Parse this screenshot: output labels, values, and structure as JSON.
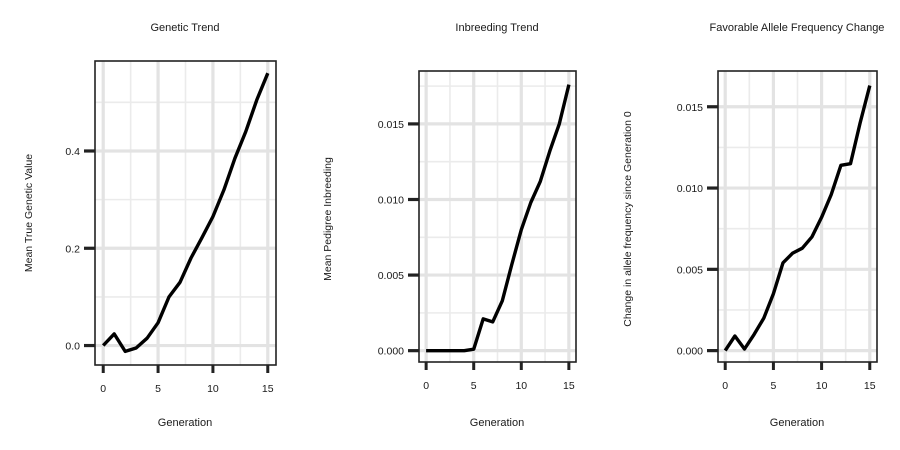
{
  "chart_data": [
    {
      "type": "line",
      "title": "Genetic Trend",
      "xlabel": "Generation",
      "ylabel": "Mean True Genetic Value",
      "xlim": [
        -0.75,
        15.75
      ],
      "ylim": [
        -0.04,
        0.585
      ],
      "xticks": [
        0,
        5,
        10,
        15
      ],
      "yticks": [
        0.0,
        0.2,
        0.4
      ],
      "ytick_labels": [
        "0.0",
        "0.2",
        "0.4"
      ],
      "grid": true,
      "series": [
        {
          "x": [
            0,
            1,
            2,
            3,
            4,
            5,
            6,
            7,
            8,
            9,
            10,
            11,
            12,
            13,
            14,
            15
          ],
          "values": [
            0.0,
            0.024,
            -0.012,
            -0.005,
            0.015,
            0.047,
            0.1,
            0.13,
            0.18,
            0.222,
            0.265,
            0.32,
            0.385,
            0.44,
            0.505,
            0.56
          ]
        }
      ]
    },
    {
      "type": "line",
      "title": "Inbreeding Trend",
      "xlabel": "Generation",
      "ylabel": "Mean Pedigree Inbreeding",
      "xlim": [
        -0.75,
        15.75
      ],
      "ylim": [
        -0.00075,
        0.0185
      ],
      "xticks": [
        0,
        5,
        10,
        15
      ],
      "yticks": [
        0.0,
        0.005,
        0.01,
        0.015
      ],
      "ytick_labels": [
        "0.000",
        "0.005",
        "0.010",
        "0.015"
      ],
      "grid": true,
      "series": [
        {
          "x": [
            0,
            1,
            2,
            3,
            4,
            5,
            6,
            7,
            8,
            9,
            10,
            11,
            12,
            13,
            14,
            15
          ],
          "values": [
            0.0,
            0.0,
            0.0,
            0.0,
            0.0,
            0.0001,
            0.0021,
            0.0019,
            0.0033,
            0.0057,
            0.008,
            0.0098,
            0.0112,
            0.0132,
            0.015,
            0.0176
          ]
        }
      ]
    },
    {
      "type": "line",
      "title": "Favorable Allele Frequency Change",
      "xlabel": "Generation",
      "ylabel": "Change in allele frequency since Generation 0",
      "xlim": [
        -0.75,
        15.75
      ],
      "ylim": [
        -0.0007,
        0.0172
      ],
      "xticks": [
        0,
        5,
        10,
        15
      ],
      "yticks": [
        0.0,
        0.005,
        0.01,
        0.015
      ],
      "ytick_labels": [
        "0.000",
        "0.005",
        "0.010",
        "0.015"
      ],
      "grid": true,
      "series": [
        {
          "x": [
            0,
            1,
            2,
            3,
            4,
            5,
            6,
            7,
            8,
            9,
            10,
            11,
            12,
            13,
            14,
            15
          ],
          "values": [
            0.0,
            0.0009,
            0.0001,
            0.001,
            0.002,
            0.0035,
            0.0054,
            0.006,
            0.0063,
            0.007,
            0.0082,
            0.0096,
            0.0114,
            0.0115,
            0.014,
            0.0163
          ]
        }
      ]
    }
  ]
}
